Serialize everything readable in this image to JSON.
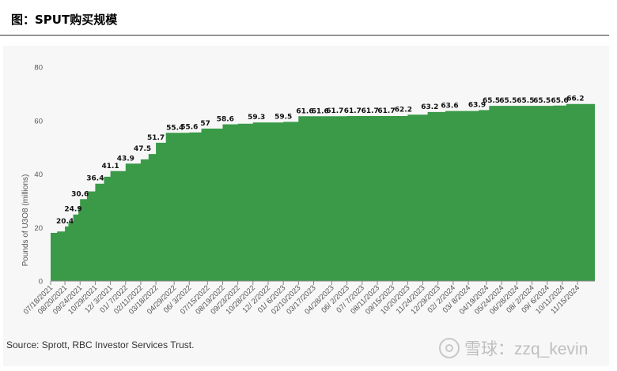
{
  "header": {
    "title": "图：SPUT购买规模"
  },
  "source_note": "Source: Sprott, RBC Investor Services Trust.",
  "watermark": {
    "text": "雪球：zzq_kevin",
    "icon": "snowball-logo-icon"
  },
  "colors": {
    "area": "#3a9a48",
    "tick": "#555555",
    "axis": "#888888"
  },
  "chart_data": {
    "type": "area",
    "step": true,
    "ylabel": "Pounds of U3O8 (millions)",
    "ylim": [
      0,
      80
    ],
    "yticks": [
      0,
      20,
      40,
      60,
      80
    ],
    "grid": false,
    "xlim": [
      "2021-07-18",
      "2024-12-25"
    ],
    "x_tick_labels": [
      "07/18/2021",
      "08/20/2021",
      "09/24/2021",
      "10/29/2021",
      "12/ 3/2021",
      "01/ 7/2022",
      "02/11/2022",
      "03/18/2022",
      "04/29/2022",
      "06/ 3/2022",
      "07/15/2022",
      "08/19/2022",
      "09/23/2022",
      "10/28/2022",
      "12/ 2/2022",
      "01/ 6/2023",
      "02/10/2023",
      "03/17/2023",
      "04/28/2023",
      "06/ 2/2023",
      "07/ 7/2023",
      "08/11/2023",
      "09/15/2023",
      "10/20/2023",
      "11/24/2023",
      "12/29/2023",
      "02/ 2/2024",
      "03/ 8/2024",
      "04/19/2024",
      "05/24/2024",
      "06/28/2024",
      "08/ 2/2024",
      "09/ 6/2024",
      "10/11/2024",
      "11/15/2024"
    ],
    "x_tick_dates": [
      "2021-07-18",
      "2021-08-20",
      "2021-09-24",
      "2021-10-29",
      "2021-12-03",
      "2022-01-07",
      "2022-02-11",
      "2022-03-18",
      "2022-04-29",
      "2022-06-03",
      "2022-07-15",
      "2022-08-19",
      "2022-09-23",
      "2022-10-28",
      "2022-12-02",
      "2023-01-06",
      "2023-02-10",
      "2023-03-17",
      "2023-04-28",
      "2023-06-02",
      "2023-07-07",
      "2023-08-11",
      "2023-09-15",
      "2023-10-20",
      "2023-11-24",
      "2023-12-29",
      "2024-02-02",
      "2024-03-08",
      "2024-04-19",
      "2024-05-24",
      "2024-06-28",
      "2024-08-02",
      "2024-09-06",
      "2024-10-11",
      "2024-11-15"
    ],
    "series": [
      {
        "points": [
          {
            "x": "2021-07-18",
            "y": 18.0
          },
          {
            "x": "2021-08-02",
            "y": 18.5
          },
          {
            "x": "2021-08-20",
            "y": 20.4
          },
          {
            "x": "2021-08-28",
            "y": 22.0
          },
          {
            "x": "2021-09-08",
            "y": 24.9
          },
          {
            "x": "2021-09-20",
            "y": 28.0
          },
          {
            "x": "2021-09-24",
            "y": 30.6
          },
          {
            "x": "2021-10-10",
            "y": 33.5
          },
          {
            "x": "2021-10-29",
            "y": 36.4
          },
          {
            "x": "2021-11-18",
            "y": 39.0
          },
          {
            "x": "2021-12-03",
            "y": 41.1
          },
          {
            "x": "2022-01-07",
            "y": 43.9
          },
          {
            "x": "2022-02-11",
            "y": 45.5
          },
          {
            "x": "2022-03-01",
            "y": 47.5
          },
          {
            "x": "2022-03-18",
            "y": 51.7
          },
          {
            "x": "2022-04-10",
            "y": 55.4
          },
          {
            "x": "2022-06-03",
            "y": 55.6
          },
          {
            "x": "2022-07-01",
            "y": 57.0
          },
          {
            "x": "2022-08-19",
            "y": 58.6
          },
          {
            "x": "2022-09-23",
            "y": 58.8
          },
          {
            "x": "2022-10-28",
            "y": 59.3
          },
          {
            "x": "2023-01-06",
            "y": 59.5
          },
          {
            "x": "2023-02-10",
            "y": 61.6
          },
          {
            "x": "2023-03-17",
            "y": 61.6
          },
          {
            "x": "2023-04-28",
            "y": 61.6
          },
          {
            "x": "2023-06-02",
            "y": 61.7
          },
          {
            "x": "2023-07-07",
            "y": 61.7
          },
          {
            "x": "2023-08-11",
            "y": 61.7
          },
          {
            "x": "2023-09-15",
            "y": 61.7
          },
          {
            "x": "2023-10-20",
            "y": 62.2
          },
          {
            "x": "2023-12-05",
            "y": 63.2
          },
          {
            "x": "2024-01-15",
            "y": 63.6
          },
          {
            "x": "2024-04-01",
            "y": 63.9
          },
          {
            "x": "2024-04-25",
            "y": 65.5
          },
          {
            "x": "2024-06-28",
            "y": 65.5
          },
          {
            "x": "2024-08-02",
            "y": 65.5
          },
          {
            "x": "2024-09-20",
            "y": 65.6
          },
          {
            "x": "2024-10-20",
            "y": 66.2
          }
        ]
      }
    ],
    "data_labels": [
      {
        "text": "20.4",
        "x": "2021-08-20",
        "y": 20.4
      },
      {
        "text": "24.9",
        "x": "2021-09-08",
        "y": 24.9
      },
      {
        "text": "30.6",
        "x": "2021-09-24",
        "y": 30.6
      },
      {
        "text": "36.4",
        "x": "2021-10-29",
        "y": 36.4
      },
      {
        "text": "41.1",
        "x": "2021-12-03",
        "y": 41.1
      },
      {
        "text": "43.9",
        "x": "2022-01-07",
        "y": 43.9
      },
      {
        "text": "47.5",
        "x": "2022-02-15",
        "y": 47.5
      },
      {
        "text": "51.7",
        "x": "2022-03-18",
        "y": 51.7
      },
      {
        "text": "55.4",
        "x": "2022-05-01",
        "y": 55.4
      },
      {
        "text": "55.6",
        "x": "2022-06-03",
        "y": 55.6
      },
      {
        "text": "57",
        "x": "2022-07-10",
        "y": 57.0
      },
      {
        "text": "58.6",
        "x": "2022-08-25",
        "y": 58.6
      },
      {
        "text": "59.3",
        "x": "2022-11-05",
        "y": 59.3
      },
      {
        "text": "59.5",
        "x": "2023-01-06",
        "y": 59.5
      },
      {
        "text": "61.6",
        "x": "2023-02-25",
        "y": 61.6
      },
      {
        "text": "61.6",
        "x": "2023-04-01",
        "y": 61.6
      },
      {
        "text": "61.7",
        "x": "2023-05-05",
        "y": 61.7
      },
      {
        "text": "61.7",
        "x": "2023-06-15",
        "y": 61.7
      },
      {
        "text": "61.7",
        "x": "2023-07-25",
        "y": 61.7
      },
      {
        "text": "61.7",
        "x": "2023-09-01",
        "y": 61.7
      },
      {
        "text": "62.2",
        "x": "2023-10-10",
        "y": 62.2
      },
      {
        "text": "63.2",
        "x": "2023-12-10",
        "y": 63.2
      },
      {
        "text": "63.6",
        "x": "2024-01-25",
        "y": 63.6
      },
      {
        "text": "63.9",
        "x": "2024-03-28",
        "y": 63.9
      },
      {
        "text": "65.5",
        "x": "2024-04-30",
        "y": 65.5
      },
      {
        "text": "65.5",
        "x": "2024-06-08",
        "y": 65.5
      },
      {
        "text": "65.5",
        "x": "2024-07-18",
        "y": 65.5
      },
      {
        "text": "65.5",
        "x": "2024-08-25",
        "y": 65.5
      },
      {
        "text": "65.6",
        "x": "2024-10-05",
        "y": 65.6
      },
      {
        "text": "66.2",
        "x": "2024-11-10",
        "y": 66.2
      }
    ]
  }
}
